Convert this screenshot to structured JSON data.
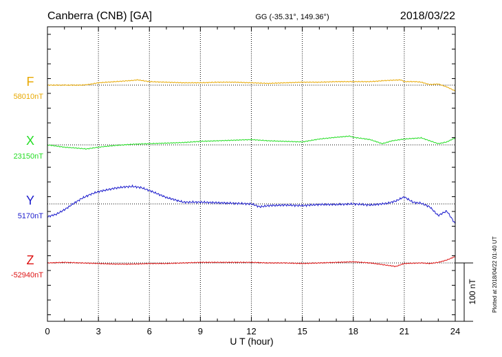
{
  "chart_data": {
    "type": "line",
    "title": "Canberra (CNB)  [GA]",
    "coords": "GG (-35.31°, 149.36°)",
    "date": "2018/03/22",
    "xlabel": "U T (hour)",
    "xlim": [
      0,
      24
    ],
    "xticks": [
      "0",
      "3",
      "6",
      "9",
      "12",
      "15",
      "18",
      "21",
      "24"
    ],
    "scale_label": "100 nT",
    "scale_nT": 100,
    "plotted_note": "Plotted at 2018/04/22 01:40 UT",
    "grid": "dotted vertical every 3 hours, dotted baseline per component",
    "series": [
      {
        "name": "F",
        "baseline_label": "58010nT",
        "baseline_nT": 58010,
        "color": "#e8a800",
        "x": [
          0,
          1,
          2,
          2.4,
          3,
          4,
          5,
          5.3,
          6,
          7,
          8,
          9,
          10,
          11,
          12,
          13,
          14,
          15,
          16,
          17,
          18,
          19,
          20,
          20.8,
          21,
          21.7,
          22,
          22.5,
          23,
          23.5,
          24
        ],
        "y": [
          0,
          0,
          0,
          1,
          4,
          6,
          8,
          9,
          6,
          5,
          4,
          4,
          5,
          5,
          4,
          3,
          4,
          5,
          5,
          6,
          6,
          6,
          8,
          9,
          6,
          6,
          5,
          1,
          2,
          -3,
          -10
        ]
      },
      {
        "name": "X",
        "baseline_label": "23150nT",
        "baseline_nT": 23150,
        "color": "#22dd22",
        "x": [
          0,
          1,
          1.5,
          2.3,
          3,
          4,
          5,
          6,
          7,
          8,
          9,
          10,
          11,
          12,
          13,
          14,
          15,
          16,
          17,
          17.8,
          18,
          19,
          19.7,
          20.3,
          21,
          22,
          22.5,
          23,
          23.5,
          24
        ],
        "y": [
          0,
          -4,
          -5,
          -7,
          -4,
          -1,
          1,
          2,
          3,
          4,
          6,
          7,
          8,
          9,
          7,
          6,
          5,
          10,
          13,
          15,
          13,
          9,
          2,
          7,
          10,
          12,
          7,
          2,
          5,
          12
        ]
      },
      {
        "name": "Y",
        "baseline_label": "5170nT",
        "baseline_nT": 5170,
        "color": "#1a1acc",
        "x": [
          0,
          0.5,
          1,
          1.5,
          2,
          2.5,
          3,
          3.5,
          4,
          4.5,
          5,
          5.5,
          6,
          6.5,
          7,
          7.5,
          8,
          9,
          10,
          11,
          12,
          12.5,
          13,
          14,
          15,
          16,
          17,
          18,
          19,
          20,
          20.5,
          21,
          21.5,
          22,
          22.5,
          23,
          23.5,
          24
        ],
        "y": [
          -22,
          -18,
          -10,
          0,
          9,
          16,
          21,
          24,
          27,
          29,
          30,
          28,
          23,
          17,
          11,
          7,
          3,
          3,
          2,
          1,
          0,
          -5,
          -3,
          -2,
          -3,
          -1,
          -1,
          0,
          -2,
          1,
          5,
          12,
          3,
          1,
          -5,
          -20,
          -12,
          -34
        ],
        "jitter": 2
      },
      {
        "name": "Z",
        "baseline_label": "-52940nT",
        "baseline_nT": -52940,
        "color": "#dd1111",
        "x": [
          0,
          1,
          2,
          3,
          4,
          5,
          6,
          7,
          8,
          9,
          10,
          11,
          12,
          13,
          14,
          15,
          16,
          17,
          18,
          19,
          20,
          20.5,
          21,
          22,
          22.5,
          23,
          23.5,
          24
        ],
        "y": [
          0,
          1,
          0,
          -1,
          -2,
          -2,
          -1,
          -1,
          0,
          1,
          1,
          1,
          1,
          0,
          0,
          -1,
          0,
          1,
          2,
          0,
          -4,
          -6,
          -1,
          0,
          -1,
          1,
          5,
          11
        ]
      }
    ]
  }
}
